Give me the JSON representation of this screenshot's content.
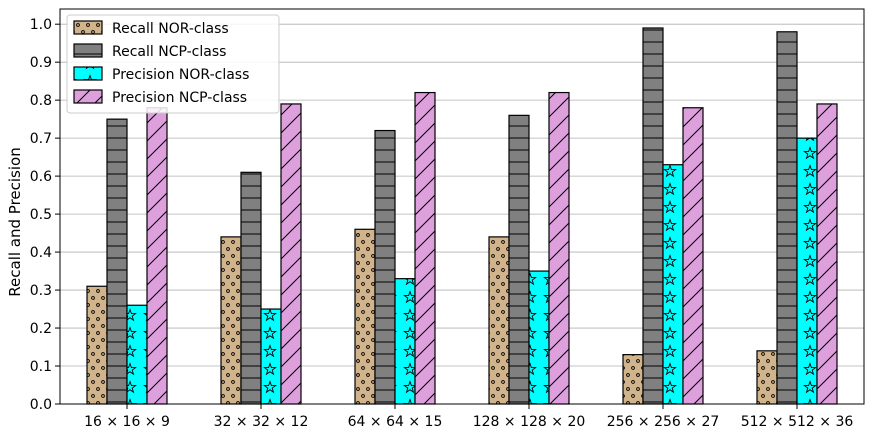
{
  "chart_data": {
    "type": "bar",
    "title": "",
    "xlabel": "",
    "ylabel": "Recall and Precision",
    "ylim": [
      0,
      1.04
    ],
    "yticks": [
      0.0,
      0.1,
      0.2,
      0.3,
      0.4,
      0.5,
      0.6,
      0.7,
      0.8,
      0.9,
      1.0
    ],
    "ytick_labels": [
      "0.0",
      "0.1",
      "0.2",
      "0.3",
      "0.4",
      "0.5",
      "0.6",
      "0.7",
      "0.8",
      "0.9",
      "1.0"
    ],
    "categories": [
      "16 × 16 × 9",
      "32 × 32 × 12",
      "64 × 64 × 15",
      "128 × 128 × 20",
      "256 × 256 × 27",
      "512 × 512 × 36"
    ],
    "grid": "horizontal",
    "legend_position": "top-left",
    "series": [
      {
        "name": "Recall NOR-class",
        "color": "#D2B48C",
        "pattern": "dots",
        "values": [
          0.31,
          0.44,
          0.46,
          0.44,
          0.13,
          0.14
        ]
      },
      {
        "name": "Recall NCP-class",
        "color": "#808080",
        "pattern": "horizontal-lines",
        "values": [
          0.75,
          0.61,
          0.72,
          0.76,
          0.99,
          0.98
        ]
      },
      {
        "name": "Precision NOR-class",
        "color": "#00FFFF",
        "pattern": "stars",
        "values": [
          0.26,
          0.25,
          0.33,
          0.35,
          0.63,
          0.7
        ]
      },
      {
        "name": "Precision NCP-class",
        "color": "#DDA0DD",
        "pattern": "diagonal-lines",
        "values": [
          0.78,
          0.79,
          0.82,
          0.82,
          0.78,
          0.79
        ]
      }
    ]
  }
}
